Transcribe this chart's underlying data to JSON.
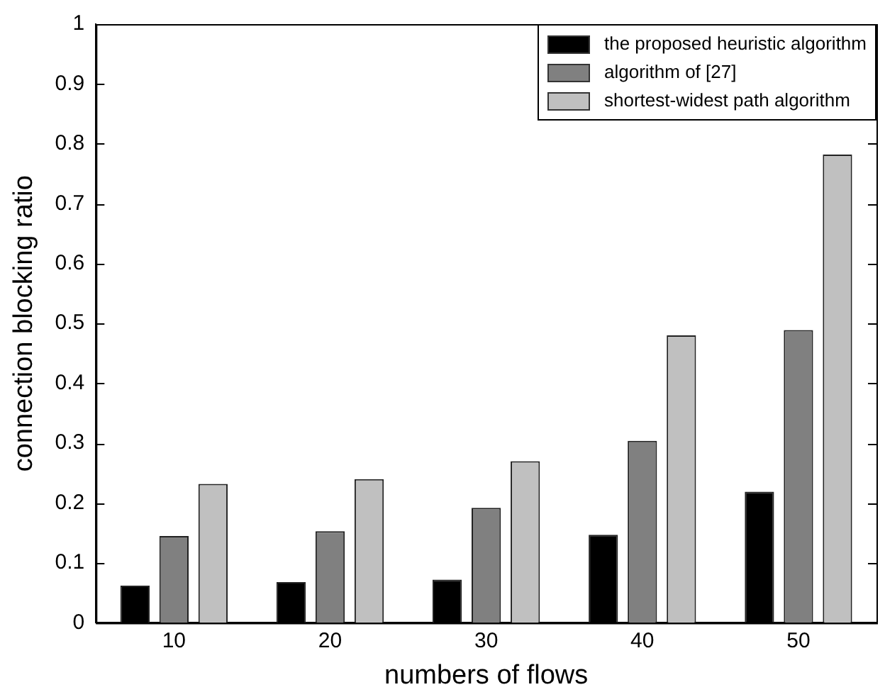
{
  "chart_data": {
    "type": "bar",
    "xlabel": "numbers of flows",
    "ylabel": "connection blocking ratio",
    "categories": [
      "10",
      "20",
      "30",
      "40",
      "50"
    ],
    "series": [
      {
        "name": "the proposed heuristic algorithm",
        "color": "#000000",
        "values": [
          0.062,
          0.068,
          0.072,
          0.147,
          0.219
        ]
      },
      {
        "name": "algorithm of [27]",
        "color": "#808080",
        "values": [
          0.145,
          0.153,
          0.192,
          0.304,
          0.489
        ]
      },
      {
        "name": "shortest-widest path algorithm",
        "color": "#c0c0c0",
        "values": [
          0.232,
          0.24,
          0.27,
          0.48,
          0.782
        ]
      }
    ],
    "ylim": [
      0,
      1
    ],
    "yticks": [
      0,
      0.1,
      0.2,
      0.3,
      0.4,
      0.5,
      0.6,
      0.7,
      0.8,
      0.9,
      1
    ],
    "grid": false,
    "legend": "top right"
  }
}
